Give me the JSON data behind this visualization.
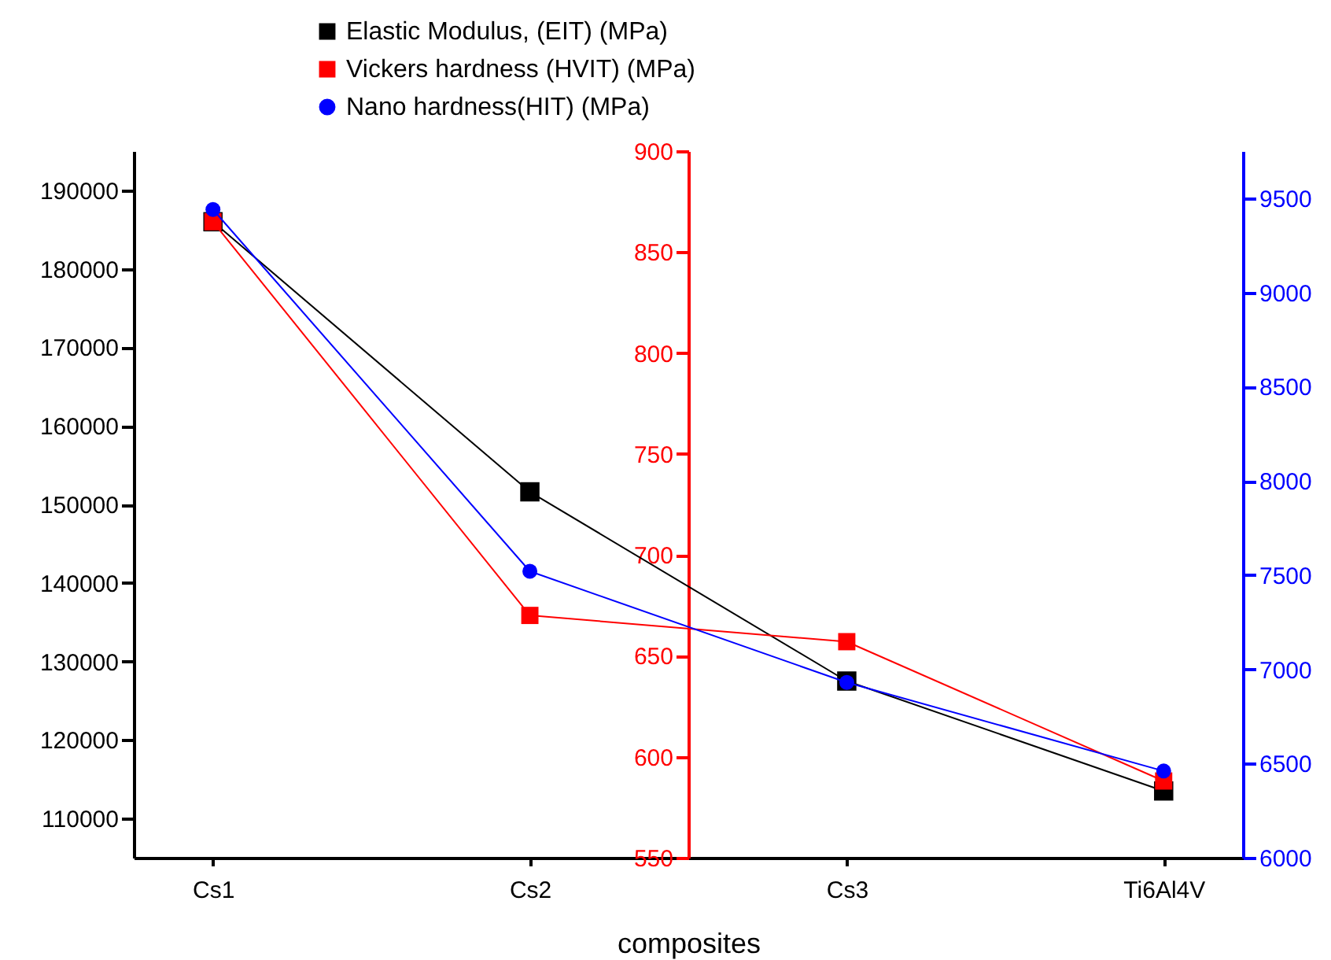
{
  "chart_data": {
    "type": "line",
    "xlabel": "composites",
    "categories": [
      "Cs1",
      "Cs2",
      "Cs3",
      "Ti6Al4V"
    ],
    "series": [
      {
        "name": "Elastic Modulus, (EIT) (MPa)",
        "color": "#000000",
        "marker": "square",
        "axis": "y",
        "values": [
          186000,
          151600,
          127500,
          113500
        ]
      },
      {
        "name": "Vickers hardness (HVIT) (MPa)",
        "color": "#ff0000",
        "marker": "square",
        "axis": "y3",
        "values": [
          865,
          670,
          657,
          588
        ]
      },
      {
        "name": "Nano hardness(HIT) (MPa)",
        "color": "#0000ff",
        "marker": "circle",
        "axis": "y2",
        "values": [
          9440,
          7520,
          6930,
          6460
        ]
      }
    ],
    "ylim": [
      105000,
      195000
    ],
    "yticks": [
      110000,
      120000,
      130000,
      140000,
      150000,
      160000,
      170000,
      180000,
      190000
    ],
    "y2lim": [
      6000,
      9750
    ],
    "y2ticks": [
      6000,
      6500,
      7000,
      7500,
      8000,
      8500,
      9000,
      9500
    ],
    "y3lim": [
      550,
      900
    ],
    "y3ticks": [
      550,
      600,
      650,
      700,
      750,
      800,
      850,
      900
    ],
    "legend": "top",
    "grid": false
  }
}
